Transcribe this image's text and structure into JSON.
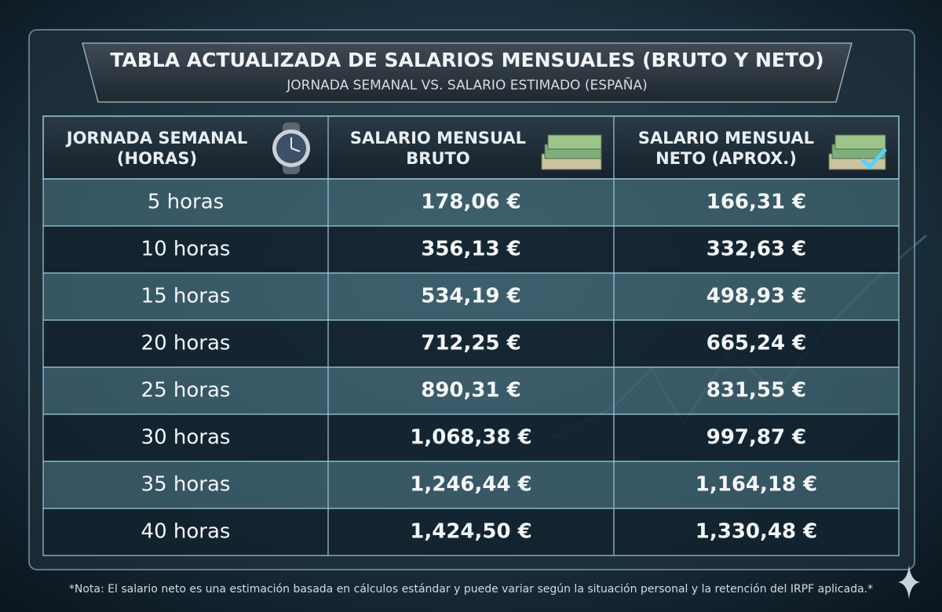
{
  "header": {
    "title": "TABLA ACTUALIZADA DE SALARIOS MENSUALES (BRUTO Y NETO)",
    "subtitle": "JORNADA SEMANAL VS. SALARIO ESTIMADO (ESPAÑA)"
  },
  "table": {
    "columns": [
      [
        "JORNADA SEMANAL",
        "(HORAS)"
      ],
      [
        "SALARIO MENSUAL",
        "BRUTO"
      ],
      [
        "SALARIO MENSUAL",
        "NETO (APROX.)"
      ]
    ],
    "rows": [
      [
        "5 horas",
        "178,06 €",
        "166,31 €"
      ],
      [
        "10 horas",
        "356,13 €",
        "332,63 €"
      ],
      [
        "15 horas",
        "534,19 €",
        "498,93 €"
      ],
      [
        "20 horas",
        "712,25 €",
        "665,24 €"
      ],
      [
        "25 horas",
        "890,31 €",
        "831,55 €"
      ],
      [
        "30 horas",
        "1,068,38 €",
        "997,87 €"
      ],
      [
        "35 horas",
        "1,246,44 €",
        "1,164,18 €"
      ],
      [
        "40 horas",
        "1,424,50 €",
        "1,330,48 €"
      ]
    ]
  },
  "footnote": "*Nota: El salario neto es una estimación basada en cálculos estándar y puede variar según la situación personal y la retención del IRPF aplicada.*"
}
